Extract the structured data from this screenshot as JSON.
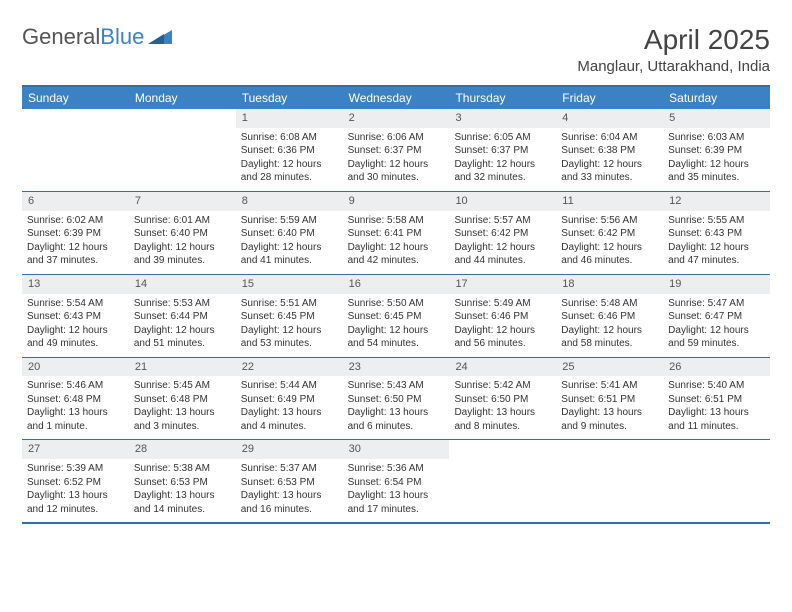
{
  "logo": {
    "part1": "General",
    "part2": "Blue"
  },
  "header": {
    "month": "April 2025",
    "location": "Manglaur, Uttarakhand, India"
  },
  "colors": {
    "header_bg": "#3b82c4",
    "border": "#2f6fa8",
    "daynum_bg": "#eceeef",
    "text": "#333333",
    "logo_gray": "#555555",
    "logo_blue": "#3b82c4"
  },
  "dayNames": [
    "Sunday",
    "Monday",
    "Tuesday",
    "Wednesday",
    "Thursday",
    "Friday",
    "Saturday"
  ],
  "weeks": [
    [
      null,
      null,
      {
        "n": "1",
        "sr": "Sunrise: 6:08 AM",
        "ss": "Sunset: 6:36 PM",
        "dl": "Daylight: 12 hours and 28 minutes."
      },
      {
        "n": "2",
        "sr": "Sunrise: 6:06 AM",
        "ss": "Sunset: 6:37 PM",
        "dl": "Daylight: 12 hours and 30 minutes."
      },
      {
        "n": "3",
        "sr": "Sunrise: 6:05 AM",
        "ss": "Sunset: 6:37 PM",
        "dl": "Daylight: 12 hours and 32 minutes."
      },
      {
        "n": "4",
        "sr": "Sunrise: 6:04 AM",
        "ss": "Sunset: 6:38 PM",
        "dl": "Daylight: 12 hours and 33 minutes."
      },
      {
        "n": "5",
        "sr": "Sunrise: 6:03 AM",
        "ss": "Sunset: 6:39 PM",
        "dl": "Daylight: 12 hours and 35 minutes."
      }
    ],
    [
      {
        "n": "6",
        "sr": "Sunrise: 6:02 AM",
        "ss": "Sunset: 6:39 PM",
        "dl": "Daylight: 12 hours and 37 minutes."
      },
      {
        "n": "7",
        "sr": "Sunrise: 6:01 AM",
        "ss": "Sunset: 6:40 PM",
        "dl": "Daylight: 12 hours and 39 minutes."
      },
      {
        "n": "8",
        "sr": "Sunrise: 5:59 AM",
        "ss": "Sunset: 6:40 PM",
        "dl": "Daylight: 12 hours and 41 minutes."
      },
      {
        "n": "9",
        "sr": "Sunrise: 5:58 AM",
        "ss": "Sunset: 6:41 PM",
        "dl": "Daylight: 12 hours and 42 minutes."
      },
      {
        "n": "10",
        "sr": "Sunrise: 5:57 AM",
        "ss": "Sunset: 6:42 PM",
        "dl": "Daylight: 12 hours and 44 minutes."
      },
      {
        "n": "11",
        "sr": "Sunrise: 5:56 AM",
        "ss": "Sunset: 6:42 PM",
        "dl": "Daylight: 12 hours and 46 minutes."
      },
      {
        "n": "12",
        "sr": "Sunrise: 5:55 AM",
        "ss": "Sunset: 6:43 PM",
        "dl": "Daylight: 12 hours and 47 minutes."
      }
    ],
    [
      {
        "n": "13",
        "sr": "Sunrise: 5:54 AM",
        "ss": "Sunset: 6:43 PM",
        "dl": "Daylight: 12 hours and 49 minutes."
      },
      {
        "n": "14",
        "sr": "Sunrise: 5:53 AM",
        "ss": "Sunset: 6:44 PM",
        "dl": "Daylight: 12 hours and 51 minutes."
      },
      {
        "n": "15",
        "sr": "Sunrise: 5:51 AM",
        "ss": "Sunset: 6:45 PM",
        "dl": "Daylight: 12 hours and 53 minutes."
      },
      {
        "n": "16",
        "sr": "Sunrise: 5:50 AM",
        "ss": "Sunset: 6:45 PM",
        "dl": "Daylight: 12 hours and 54 minutes."
      },
      {
        "n": "17",
        "sr": "Sunrise: 5:49 AM",
        "ss": "Sunset: 6:46 PM",
        "dl": "Daylight: 12 hours and 56 minutes."
      },
      {
        "n": "18",
        "sr": "Sunrise: 5:48 AM",
        "ss": "Sunset: 6:46 PM",
        "dl": "Daylight: 12 hours and 58 minutes."
      },
      {
        "n": "19",
        "sr": "Sunrise: 5:47 AM",
        "ss": "Sunset: 6:47 PM",
        "dl": "Daylight: 12 hours and 59 minutes."
      }
    ],
    [
      {
        "n": "20",
        "sr": "Sunrise: 5:46 AM",
        "ss": "Sunset: 6:48 PM",
        "dl": "Daylight: 13 hours and 1 minute."
      },
      {
        "n": "21",
        "sr": "Sunrise: 5:45 AM",
        "ss": "Sunset: 6:48 PM",
        "dl": "Daylight: 13 hours and 3 minutes."
      },
      {
        "n": "22",
        "sr": "Sunrise: 5:44 AM",
        "ss": "Sunset: 6:49 PM",
        "dl": "Daylight: 13 hours and 4 minutes."
      },
      {
        "n": "23",
        "sr": "Sunrise: 5:43 AM",
        "ss": "Sunset: 6:50 PM",
        "dl": "Daylight: 13 hours and 6 minutes."
      },
      {
        "n": "24",
        "sr": "Sunrise: 5:42 AM",
        "ss": "Sunset: 6:50 PM",
        "dl": "Daylight: 13 hours and 8 minutes."
      },
      {
        "n": "25",
        "sr": "Sunrise: 5:41 AM",
        "ss": "Sunset: 6:51 PM",
        "dl": "Daylight: 13 hours and 9 minutes."
      },
      {
        "n": "26",
        "sr": "Sunrise: 5:40 AM",
        "ss": "Sunset: 6:51 PM",
        "dl": "Daylight: 13 hours and 11 minutes."
      }
    ],
    [
      {
        "n": "27",
        "sr": "Sunrise: 5:39 AM",
        "ss": "Sunset: 6:52 PM",
        "dl": "Daylight: 13 hours and 12 minutes."
      },
      {
        "n": "28",
        "sr": "Sunrise: 5:38 AM",
        "ss": "Sunset: 6:53 PM",
        "dl": "Daylight: 13 hours and 14 minutes."
      },
      {
        "n": "29",
        "sr": "Sunrise: 5:37 AM",
        "ss": "Sunset: 6:53 PM",
        "dl": "Daylight: 13 hours and 16 minutes."
      },
      {
        "n": "30",
        "sr": "Sunrise: 5:36 AM",
        "ss": "Sunset: 6:54 PM",
        "dl": "Daylight: 13 hours and 17 minutes."
      },
      null,
      null,
      null
    ]
  ]
}
